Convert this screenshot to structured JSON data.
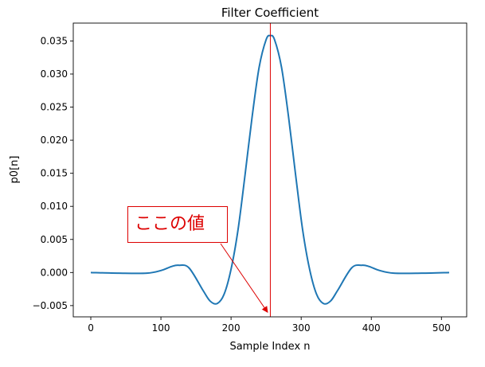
{
  "chart_data": {
    "type": "line",
    "title": "Filter Coefficient",
    "xlabel": "Sample Index n",
    "ylabel": "p0[n]",
    "xlim": [
      -25,
      536
    ],
    "ylim": [
      -0.0067,
      0.0377
    ],
    "xticks": [
      0,
      100,
      200,
      300,
      400,
      500
    ],
    "xtick_labels": [
      "0",
      "100",
      "200",
      "300",
      "400",
      "500"
    ],
    "yticks": [
      -0.005,
      0.0,
      0.005,
      0.01,
      0.015,
      0.02,
      0.025,
      0.03,
      0.035
    ],
    "ytick_labels": [
      "−0.005",
      "0.000",
      "0.005",
      "0.010",
      "0.015",
      "0.020",
      "0.025",
      "0.030",
      "0.035"
    ],
    "grid": false,
    "series": [
      {
        "color": "#1f77b4",
        "x": [
          0,
          40,
          80,
          100,
          115,
          125,
          140,
          160,
          170,
          180,
          190,
          200,
          210,
          220,
          230,
          240,
          250,
          256,
          262,
          272,
          282,
          292,
          302,
          312,
          322,
          332,
          342,
          352,
          372,
          387,
          397,
          412,
          432,
          472,
          511
        ],
        "y": [
          0.0,
          -0.0001,
          -0.0001,
          0.0003,
          0.0009,
          0.0011,
          0.0007,
          -0.0027,
          -0.0043,
          -0.0047,
          -0.0033,
          0.0005,
          0.0065,
          0.0148,
          0.0235,
          0.031,
          0.0352,
          0.0358,
          0.0352,
          0.031,
          0.0235,
          0.0148,
          0.0065,
          0.0005,
          -0.0033,
          -0.0047,
          -0.0043,
          -0.0027,
          0.0007,
          0.0011,
          0.0009,
          0.0003,
          -0.0001,
          -0.0001,
          0.0
        ]
      }
    ],
    "vline": {
      "x": 256,
      "color": "#dd0000"
    },
    "annotation": {
      "text": "ここの値",
      "point_x": 252,
      "point_y": -0.006,
      "color": "#dd0000"
    }
  }
}
